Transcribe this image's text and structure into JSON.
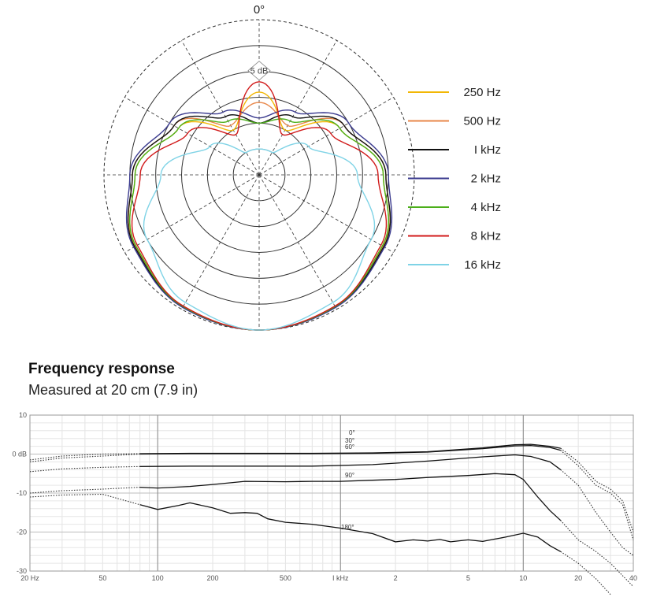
{
  "chart_data": [
    {
      "type": "polar",
      "angle_label": "0°",
      "radial_label": "5 dB",
      "rings_db": [
        0,
        -5,
        -10,
        -15,
        -20,
        -25
      ],
      "angles_deg": [
        0,
        30,
        60,
        90,
        120,
        150,
        180
      ],
      "series": [
        {
          "name": "250 Hz",
          "color": "#f2b705",
          "db": [
            0,
            -0.5,
            -2.5,
            -6,
            -12,
            -20,
            -14
          ]
        },
        {
          "name": "500 Hz",
          "color": "#e8874a",
          "db": [
            0,
            -0.5,
            -2.3,
            -5.5,
            -11,
            -19,
            -16
          ]
        },
        {
          "name": "I kHz",
          "color": "#111111",
          "db": [
            0,
            -0.5,
            -2.2,
            -5.5,
            -11,
            -17,
            -20
          ]
        },
        {
          "name": "2 kHz",
          "color": "#3b3b8f",
          "db": [
            0,
            -0.4,
            -2.0,
            -5.0,
            -10,
            -16,
            -19
          ]
        },
        {
          "name": "4 kHz",
          "color": "#4caf1a",
          "db": [
            0,
            -0.6,
            -2.5,
            -6.0,
            -12,
            -18,
            -20
          ]
        },
        {
          "name": "8 kHz",
          "color": "#d11a1a",
          "db": [
            0,
            -0.7,
            -2.8,
            -7.0,
            -14,
            -21,
            -12
          ]
        },
        {
          "name": "16 kHz",
          "color": "#7fd3e6",
          "db": [
            0,
            -1.5,
            -5.0,
            -11.0,
            -19,
            -25,
            -25
          ]
        }
      ],
      "legend_position": "right"
    },
    {
      "type": "line",
      "title": "Frequency response",
      "subtitle": "Measured at 20 cm (7.9 in)",
      "xscale": "log",
      "xlim": [
        20,
        40000
      ],
      "ylim": [
        -30,
        10
      ],
      "x_tick_labels": [
        {
          "x": 20,
          "label": "20 Hz"
        },
        {
          "x": 50,
          "label": "50"
        },
        {
          "x": 100,
          "label": "100"
        },
        {
          "x": 200,
          "label": "200"
        },
        {
          "x": 500,
          "label": "500"
        },
        {
          "x": 1000,
          "label": "I kHz"
        },
        {
          "x": 2000,
          "label": "2"
        },
        {
          "x": 5000,
          "label": "5"
        },
        {
          "x": 10000,
          "label": "10"
        },
        {
          "x": 20000,
          "label": "20"
        },
        {
          "x": 40000,
          "label": "40"
        }
      ],
      "y_tick_labels": [
        {
          "y": 10,
          "label": "10"
        },
        {
          "y": 0,
          "label": "0 dB"
        },
        {
          "y": -10,
          "label": "-10"
        },
        {
          "y": -20,
          "label": "-20"
        },
        {
          "y": -30,
          "label": "-30"
        }
      ],
      "grid": true,
      "series": [
        {
          "name": "0°",
          "points": [
            [
              20,
              -1.5
            ],
            [
              30,
              -0.5
            ],
            [
              50,
              0
            ],
            [
              80,
              0.1
            ],
            [
              150,
              0.2
            ],
            [
              300,
              0.2
            ],
            [
              700,
              0.2
            ],
            [
              1500,
              0.3
            ],
            [
              3000,
              0.6
            ],
            [
              6000,
              1.6
            ],
            [
              9000,
              2.4
            ],
            [
              11000,
              2.5
            ],
            [
              14000,
              2.0
            ],
            [
              16000,
              1.5
            ],
            [
              20000,
              -2
            ],
            [
              25000,
              -7
            ],
            [
              30000,
              -9
            ],
            [
              35000,
              -12
            ],
            [
              40000,
              -20
            ]
          ]
        },
        {
          "name": "30°",
          "points": [
            [
              20,
              -2
            ],
            [
              30,
              -1.0
            ],
            [
              50,
              -0.5
            ],
            [
              80,
              0
            ],
            [
              150,
              0.1
            ],
            [
              300,
              0.1
            ],
            [
              700,
              0.1
            ],
            [
              1500,
              0.2
            ],
            [
              3000,
              0.5
            ],
            [
              6000,
              1.4
            ],
            [
              9000,
              2.1
            ],
            [
              11000,
              2.2
            ],
            [
              14000,
              1.7
            ],
            [
              16000,
              1.0
            ],
            [
              20000,
              -3
            ],
            [
              25000,
              -8
            ],
            [
              30000,
              -10
            ],
            [
              35000,
              -13
            ],
            [
              40000,
              -22
            ]
          ]
        },
        {
          "name": "60°",
          "points": [
            [
              20,
              -4.5
            ],
            [
              30,
              -3.8
            ],
            [
              50,
              -3.4
            ],
            [
              80,
              -3.2
            ],
            [
              150,
              -3.1
            ],
            [
              300,
              -3.1
            ],
            [
              700,
              -3.1
            ],
            [
              1500,
              -2.7
            ],
            [
              3000,
              -1.8
            ],
            [
              6000,
              -0.7
            ],
            [
              9000,
              -0.2
            ],
            [
              11000,
              -0.6
            ],
            [
              14000,
              -2.0
            ],
            [
              16000,
              -4
            ],
            [
              20000,
              -8
            ],
            [
              25000,
              -15
            ],
            [
              30000,
              -20
            ],
            [
              35000,
              -24
            ],
            [
              40000,
              -26
            ]
          ]
        },
        {
          "name": "90°",
          "points": [
            [
              20,
              -10
            ],
            [
              30,
              -9.4
            ],
            [
              50,
              -9.0
            ],
            [
              80,
              -8.5
            ],
            [
              100,
              -8.7
            ],
            [
              150,
              -8.3
            ],
            [
              200,
              -7.8
            ],
            [
              300,
              -7.0
            ],
            [
              500,
              -7.1
            ],
            [
              700,
              -7.0
            ],
            [
              1000,
              -7.0
            ],
            [
              1500,
              -6.7
            ],
            [
              2000,
              -6.5
            ],
            [
              3000,
              -6.0
            ],
            [
              5000,
              -5.5
            ],
            [
              7000,
              -5.0
            ],
            [
              9000,
              -5.3
            ],
            [
              10000,
              -6.5
            ],
            [
              12000,
              -11
            ],
            [
              14000,
              -14.5
            ],
            [
              16000,
              -17
            ],
            [
              20000,
              -22
            ],
            [
              25000,
              -25
            ],
            [
              30000,
              -28
            ],
            [
              40000,
              -34
            ]
          ]
        },
        {
          "name": "180°",
          "points": [
            [
              20,
              -11
            ],
            [
              30,
              -10.5
            ],
            [
              50,
              -10.3
            ],
            [
              80,
              -13
            ],
            [
              100,
              -14.2
            ],
            [
              130,
              -13.2
            ],
            [
              150,
              -12.5
            ],
            [
              200,
              -13.8
            ],
            [
              250,
              -15.2
            ],
            [
              300,
              -15.0
            ],
            [
              350,
              -15.2
            ],
            [
              400,
              -16.6
            ],
            [
              500,
              -17.5
            ],
            [
              700,
              -18.0
            ],
            [
              1000,
              -19.0
            ],
            [
              1500,
              -20.4
            ],
            [
              2000,
              -22.5
            ],
            [
              2500,
              -22.0
            ],
            [
              3000,
              -22.3
            ],
            [
              3500,
              -21.9
            ],
            [
              4000,
              -22.5
            ],
            [
              5000,
              -22.0
            ],
            [
              6000,
              -22.4
            ],
            [
              7000,
              -21.8
            ],
            [
              8000,
              -21.3
            ],
            [
              10000,
              -20.3
            ],
            [
              12000,
              -21.3
            ],
            [
              14000,
              -23.5
            ],
            [
              16000,
              -25
            ],
            [
              20000,
              -28
            ],
            [
              25000,
              -32
            ],
            [
              30000,
              -36
            ]
          ]
        }
      ]
    }
  ]
}
